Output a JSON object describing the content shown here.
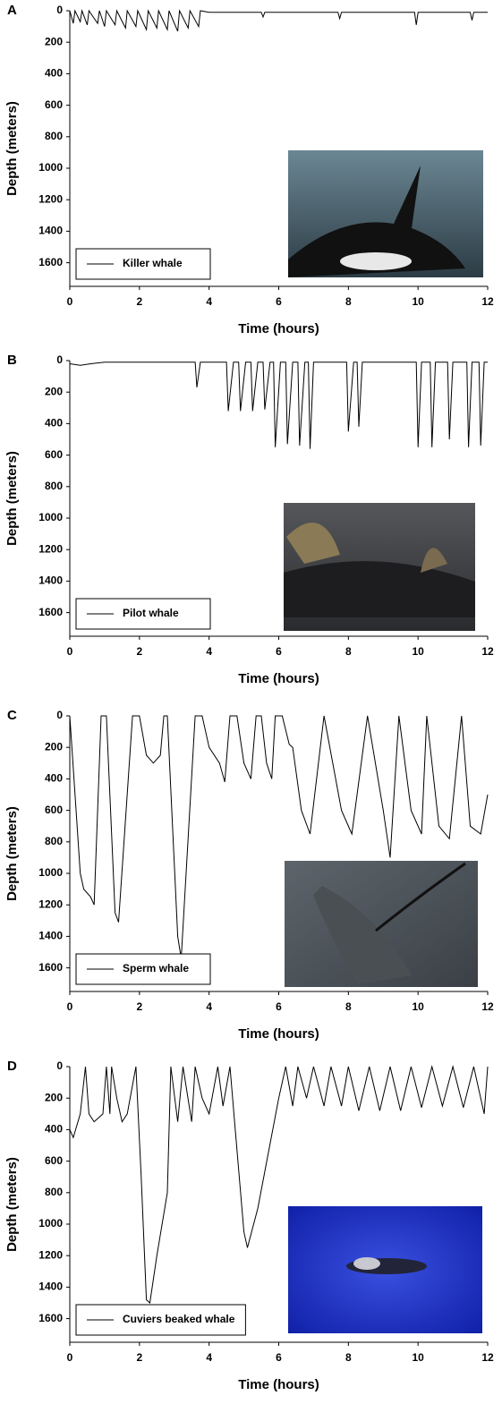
{
  "chart_data": [
    {
      "type": "line",
      "panel_label": "A",
      "xlabel": "Time (hours)",
      "ylabel": "Depth (meters)",
      "x": [
        0,
        0.1,
        0.15,
        0.3,
        0.35,
        0.5,
        0.55,
        0.8,
        0.85,
        1.0,
        1.05,
        1.3,
        1.35,
        1.6,
        1.65,
        1.9,
        1.95,
        2.2,
        2.25,
        2.5,
        2.55,
        2.8,
        2.85,
        3.1,
        3.15,
        3.4,
        3.45,
        3.7,
        3.75,
        4.0,
        5.5,
        5.55,
        5.6,
        7.7,
        7.75,
        7.8,
        9.9,
        9.95,
        10.0,
        11.5,
        11.55,
        11.6,
        12
      ],
      "series": [
        {
          "name": "Killer whale",
          "color": "#000000",
          "values": [
            0,
            80,
            0,
            70,
            0,
            90,
            0,
            80,
            0,
            100,
            0,
            90,
            0,
            110,
            0,
            100,
            0,
            120,
            0,
            110,
            0,
            120,
            0,
            130,
            0,
            110,
            0,
            100,
            0,
            10,
            10,
            40,
            10,
            10,
            50,
            10,
            10,
            90,
            10,
            10,
            60,
            10,
            10
          ]
        }
      ],
      "xlim": [
        0,
        12
      ],
      "xticks": [
        0,
        2,
        4,
        6,
        8,
        10,
        12
      ],
      "ylim": [
        0,
        1750
      ],
      "yticks": [
        0,
        200,
        400,
        600,
        800,
        1000,
        1200,
        1400,
        1600
      ],
      "y_inverted": true,
      "legend": "lower left"
    },
    {
      "type": "line",
      "panel_label": "B",
      "xlabel": "Time (hours)",
      "ylabel": "Depth (meters)",
      "x": [
        0,
        0.3,
        0.6,
        1,
        3.6,
        3.65,
        3.75,
        4.5,
        4.55,
        4.7,
        4.85,
        4.9,
        5.05,
        5.2,
        5.25,
        5.4,
        5.55,
        5.6,
        5.75,
        5.85,
        5.9,
        6.05,
        6.2,
        6.25,
        6.4,
        6.55,
        6.6,
        6.75,
        6.85,
        6.9,
        7.0,
        7.95,
        8.0,
        8.15,
        8.25,
        8.3,
        8.4,
        9.95,
        10.0,
        10.1,
        10.35,
        10.4,
        10.5,
        10.85,
        10.9,
        11.0,
        11.4,
        11.45,
        11.55,
        11.75,
        11.8,
        11.9,
        12
      ],
      "series": [
        {
          "name": "Pilot whale",
          "color": "#000000",
          "values": [
            20,
            30,
            20,
            10,
            10,
            170,
            10,
            10,
            320,
            10,
            10,
            320,
            10,
            10,
            320,
            10,
            10,
            310,
            10,
            10,
            550,
            10,
            10,
            530,
            10,
            10,
            540,
            10,
            10,
            560,
            10,
            10,
            450,
            10,
            10,
            420,
            10,
            10,
            550,
            10,
            10,
            550,
            10,
            10,
            500,
            10,
            10,
            550,
            10,
            10,
            540,
            10,
            10
          ]
        }
      ],
      "xlim": [
        0,
        12
      ],
      "xticks": [
        0,
        2,
        4,
        6,
        8,
        10,
        12
      ],
      "ylim": [
        0,
        1750
      ],
      "yticks": [
        0,
        200,
        400,
        600,
        800,
        1000,
        1200,
        1400,
        1600
      ],
      "y_inverted": true,
      "legend": "lower left"
    },
    {
      "type": "line",
      "panel_label": "C",
      "xlabel": "Time (hours)",
      "ylabel": "Depth (meters)",
      "x": [
        0,
        0.3,
        0.4,
        0.6,
        0.7,
        0.9,
        1.05,
        1.3,
        1.4,
        1.8,
        2.0,
        2.2,
        2.4,
        2.6,
        2.7,
        2.8,
        3.1,
        3.2,
        3.6,
        3.8,
        4.0,
        4.3,
        4.45,
        4.6,
        4.8,
        5.0,
        5.2,
        5.35,
        5.5,
        5.65,
        5.8,
        5.9,
        6.1,
        6.3,
        6.4,
        6.65,
        6.9,
        7.3,
        7.8,
        8.1,
        8.55,
        9.0,
        9.2,
        9.45,
        9.8,
        10.1,
        10.25,
        10.6,
        10.9,
        11.25,
        11.5,
        11.8,
        12
      ],
      "series": [
        {
          "name": "Sperm whale",
          "color": "#000000",
          "values": [
            0,
            1000,
            1100,
            1150,
            1200,
            0,
            0,
            1250,
            1310,
            0,
            0,
            250,
            300,
            250,
            0,
            0,
            1400,
            1540,
            0,
            0,
            200,
            300,
            420,
            0,
            0,
            300,
            400,
            0,
            0,
            300,
            400,
            0,
            0,
            180,
            200,
            600,
            750,
            0,
            600,
            750,
            0,
            600,
            900,
            0,
            600,
            750,
            0,
            700,
            780,
            0,
            700,
            750,
            500
          ]
        }
      ],
      "xlim": [
        0,
        12
      ],
      "xticks": [
        0,
        2,
        4,
        6,
        8,
        10,
        12
      ],
      "ylim": [
        0,
        1750
      ],
      "yticks": [
        0,
        200,
        400,
        600,
        800,
        1000,
        1200,
        1400,
        1600
      ],
      "y_inverted": true,
      "legend": "lower left"
    },
    {
      "type": "line",
      "panel_label": "D",
      "xlabel": "Time (hours)",
      "ylabel": "Depth (meters)",
      "x": [
        0,
        0.1,
        0.3,
        0.45,
        0.55,
        0.7,
        0.95,
        1.05,
        1.15,
        1.2,
        1.35,
        1.5,
        1.65,
        1.9,
        2.05,
        2.2,
        2.3,
        2.5,
        2.8,
        2.9,
        3.1,
        3.25,
        3.5,
        3.6,
        3.8,
        4.0,
        4.25,
        4.4,
        4.6,
        4.75,
        5.0,
        5.1,
        5.4,
        6.0,
        6.2,
        6.4,
        6.55,
        6.8,
        7.0,
        7.3,
        7.5,
        7.8,
        8.0,
        8.3,
        8.6,
        8.9,
        9.2,
        9.5,
        9.8,
        10.1,
        10.4,
        10.7,
        11.0,
        11.3,
        11.6,
        11.9,
        12
      ],
      "series": [
        {
          "name": "Cuviers beaked whale",
          "color": "#000000",
          "values": [
            400,
            450,
            300,
            0,
            300,
            350,
            300,
            0,
            300,
            0,
            200,
            350,
            300,
            0,
            700,
            1480,
            1500,
            1200,
            800,
            0,
            350,
            0,
            350,
            0,
            200,
            300,
            0,
            250,
            0,
            400,
            1050,
            1150,
            900,
            200,
            0,
            250,
            0,
            200,
            0,
            250,
            0,
            250,
            0,
            280,
            0,
            280,
            0,
            280,
            0,
            260,
            0,
            250,
            0,
            260,
            0,
            300,
            0
          ]
        }
      ],
      "xlim": [
        0,
        12
      ],
      "xticks": [
        0,
        2,
        4,
        6,
        8,
        10,
        12
      ],
      "ylim": [
        0,
        1750
      ],
      "yticks": [
        0,
        200,
        400,
        600,
        800,
        1000,
        1200,
        1400,
        1600
      ],
      "y_inverted": true,
      "legend": "lower left"
    }
  ]
}
